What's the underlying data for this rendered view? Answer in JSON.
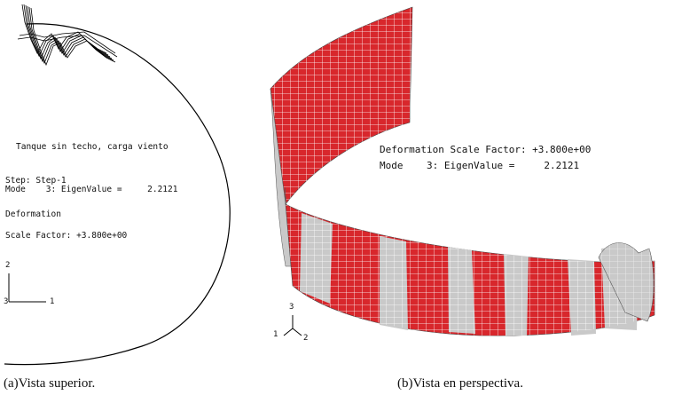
{
  "panel_a": {
    "title": "Tanque sin techo, carga viento",
    "step": "Step: Step-1",
    "mode": "Mode    3: EigenValue =     2.2121",
    "deformation": "Deformation",
    "scale_factor": "Scale Factor: +3.800e+00",
    "axis_labels": {
      "vertical": "2",
      "horizontal": "1",
      "origin": "3"
    },
    "caption": "(a)Vista superior."
  },
  "panel_b": {
    "scale_factor": "Deformation Scale Factor: +3.800e+00",
    "mode": "Mode    3: EigenValue =     2.2121",
    "axis_labels": {
      "up": "3",
      "left": "1",
      "right": "2"
    },
    "caption": "(b)Vista en perspectiva."
  },
  "colors": {
    "band_red": "#d8272c",
    "band_grey": "#c9c9c9",
    "mesh_line": "#ffffff",
    "outline": "#000000"
  }
}
